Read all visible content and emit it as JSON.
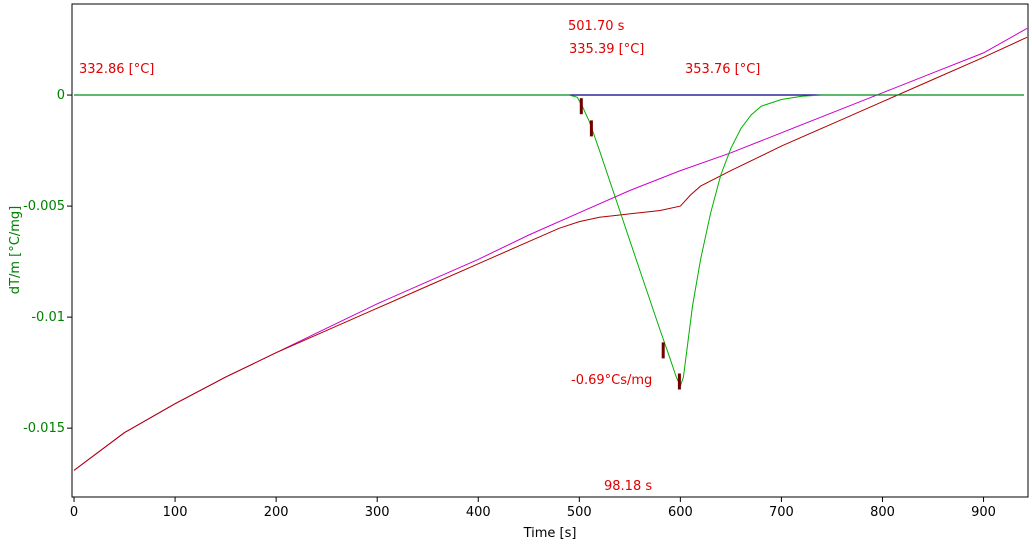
{
  "chart_data": {
    "type": "line",
    "xlabel": "Time [s]",
    "ylabel": "dT/m  [°C/mg]",
    "xlim": [
      -2,
      944
    ],
    "ylim": [
      -0.0181,
      0.0041
    ],
    "xticks": [
      0,
      100,
      200,
      300,
      400,
      500,
      600,
      700,
      800,
      900
    ],
    "yticks": [
      0,
      -0.005,
      -0.01,
      -0.015
    ],
    "ytick_labels": [
      "0",
      "-0.005",
      "-0.01",
      "-0.015"
    ],
    "grid": false,
    "colors": {
      "axis_text_y": "#008000",
      "axis_text_x": "#000000",
      "annotation": "#e00000",
      "baseline": "#000080",
      "signal": "#00b000",
      "reference": "#cc00cc",
      "sample": "#b00000",
      "marker": "#700000"
    },
    "series": [
      {
        "key": "baseline",
        "x": [
          0,
          940
        ],
        "y": [
          0.0,
          0.0
        ]
      },
      {
        "key": "signal",
        "x": [
          0,
          490,
          498,
          503,
          510,
          520,
          540,
          560,
          580,
          590,
          596,
          600,
          603,
          607,
          612,
          620,
          630,
          640,
          650,
          660,
          670,
          680,
          700,
          720,
          740,
          760,
          800,
          900,
          940
        ],
        "y": [
          0.0,
          0.0,
          -0.0001,
          -0.0005,
          -0.0012,
          -0.0025,
          -0.0052,
          -0.0079,
          -0.0106,
          -0.0119,
          -0.0127,
          -0.0131,
          -0.0127,
          -0.0113,
          -0.0095,
          -0.0074,
          -0.0053,
          -0.0036,
          -0.0024,
          -0.0015,
          -0.0009,
          -0.0005,
          -0.0002,
          -5e-05,
          0.0,
          0.0,
          0.0,
          0.0,
          0.0
        ]
      },
      {
        "key": "reference",
        "x": [
          0,
          50,
          100,
          150,
          200,
          250,
          300,
          350,
          400,
          450,
          500,
          550,
          600,
          650,
          700,
          750,
          800,
          850,
          900,
          943
        ],
        "y": [
          -0.0169,
          -0.0152,
          -0.0139,
          -0.0127,
          -0.0116,
          -0.0105,
          -0.0094,
          -0.0084,
          -0.0074,
          -0.0063,
          -0.0053,
          -0.0043,
          -0.0034,
          -0.0026,
          -0.0017,
          -0.0008,
          0.0001,
          0.001,
          0.0019,
          0.003
        ]
      },
      {
        "key": "sample",
        "x": [
          0,
          50,
          100,
          150,
          200,
          250,
          300,
          350,
          400,
          450,
          480,
          500,
          520,
          540,
          560,
          580,
          600,
          610,
          620,
          650,
          700,
          750,
          800,
          850,
          900,
          943
        ],
        "y": [
          -0.0169,
          -0.0152,
          -0.0139,
          -0.0127,
          -0.0116,
          -0.0106,
          -0.0096,
          -0.0086,
          -0.0076,
          -0.0066,
          -0.006,
          -0.0057,
          -0.0055,
          -0.0054,
          -0.0053,
          -0.0052,
          -0.005,
          -0.0045,
          -0.0041,
          -0.0034,
          -0.0023,
          -0.0013,
          -0.0003,
          0.0007,
          0.0017,
          0.0026
        ]
      }
    ],
    "markers": [
      {
        "x": 502,
        "y": -0.0005
      },
      {
        "x": 512,
        "y": -0.0015
      },
      {
        "x": 583,
        "y": -0.0115
      },
      {
        "x": 599,
        "y": -0.0129
      }
    ],
    "annotations": [
      {
        "key": "time_start",
        "text": "501.70 s"
      },
      {
        "key": "temp_start",
        "text": "335.39 [°C]"
      },
      {
        "key": "temp_left",
        "text": "332.86 [°C]"
      },
      {
        "key": "temp_right",
        "text": "353.76 [°C]"
      },
      {
        "key": "peak_area",
        "text": "-0.69°Cs/mg"
      },
      {
        "key": "duration",
        "text": "98.18 s"
      }
    ]
  }
}
